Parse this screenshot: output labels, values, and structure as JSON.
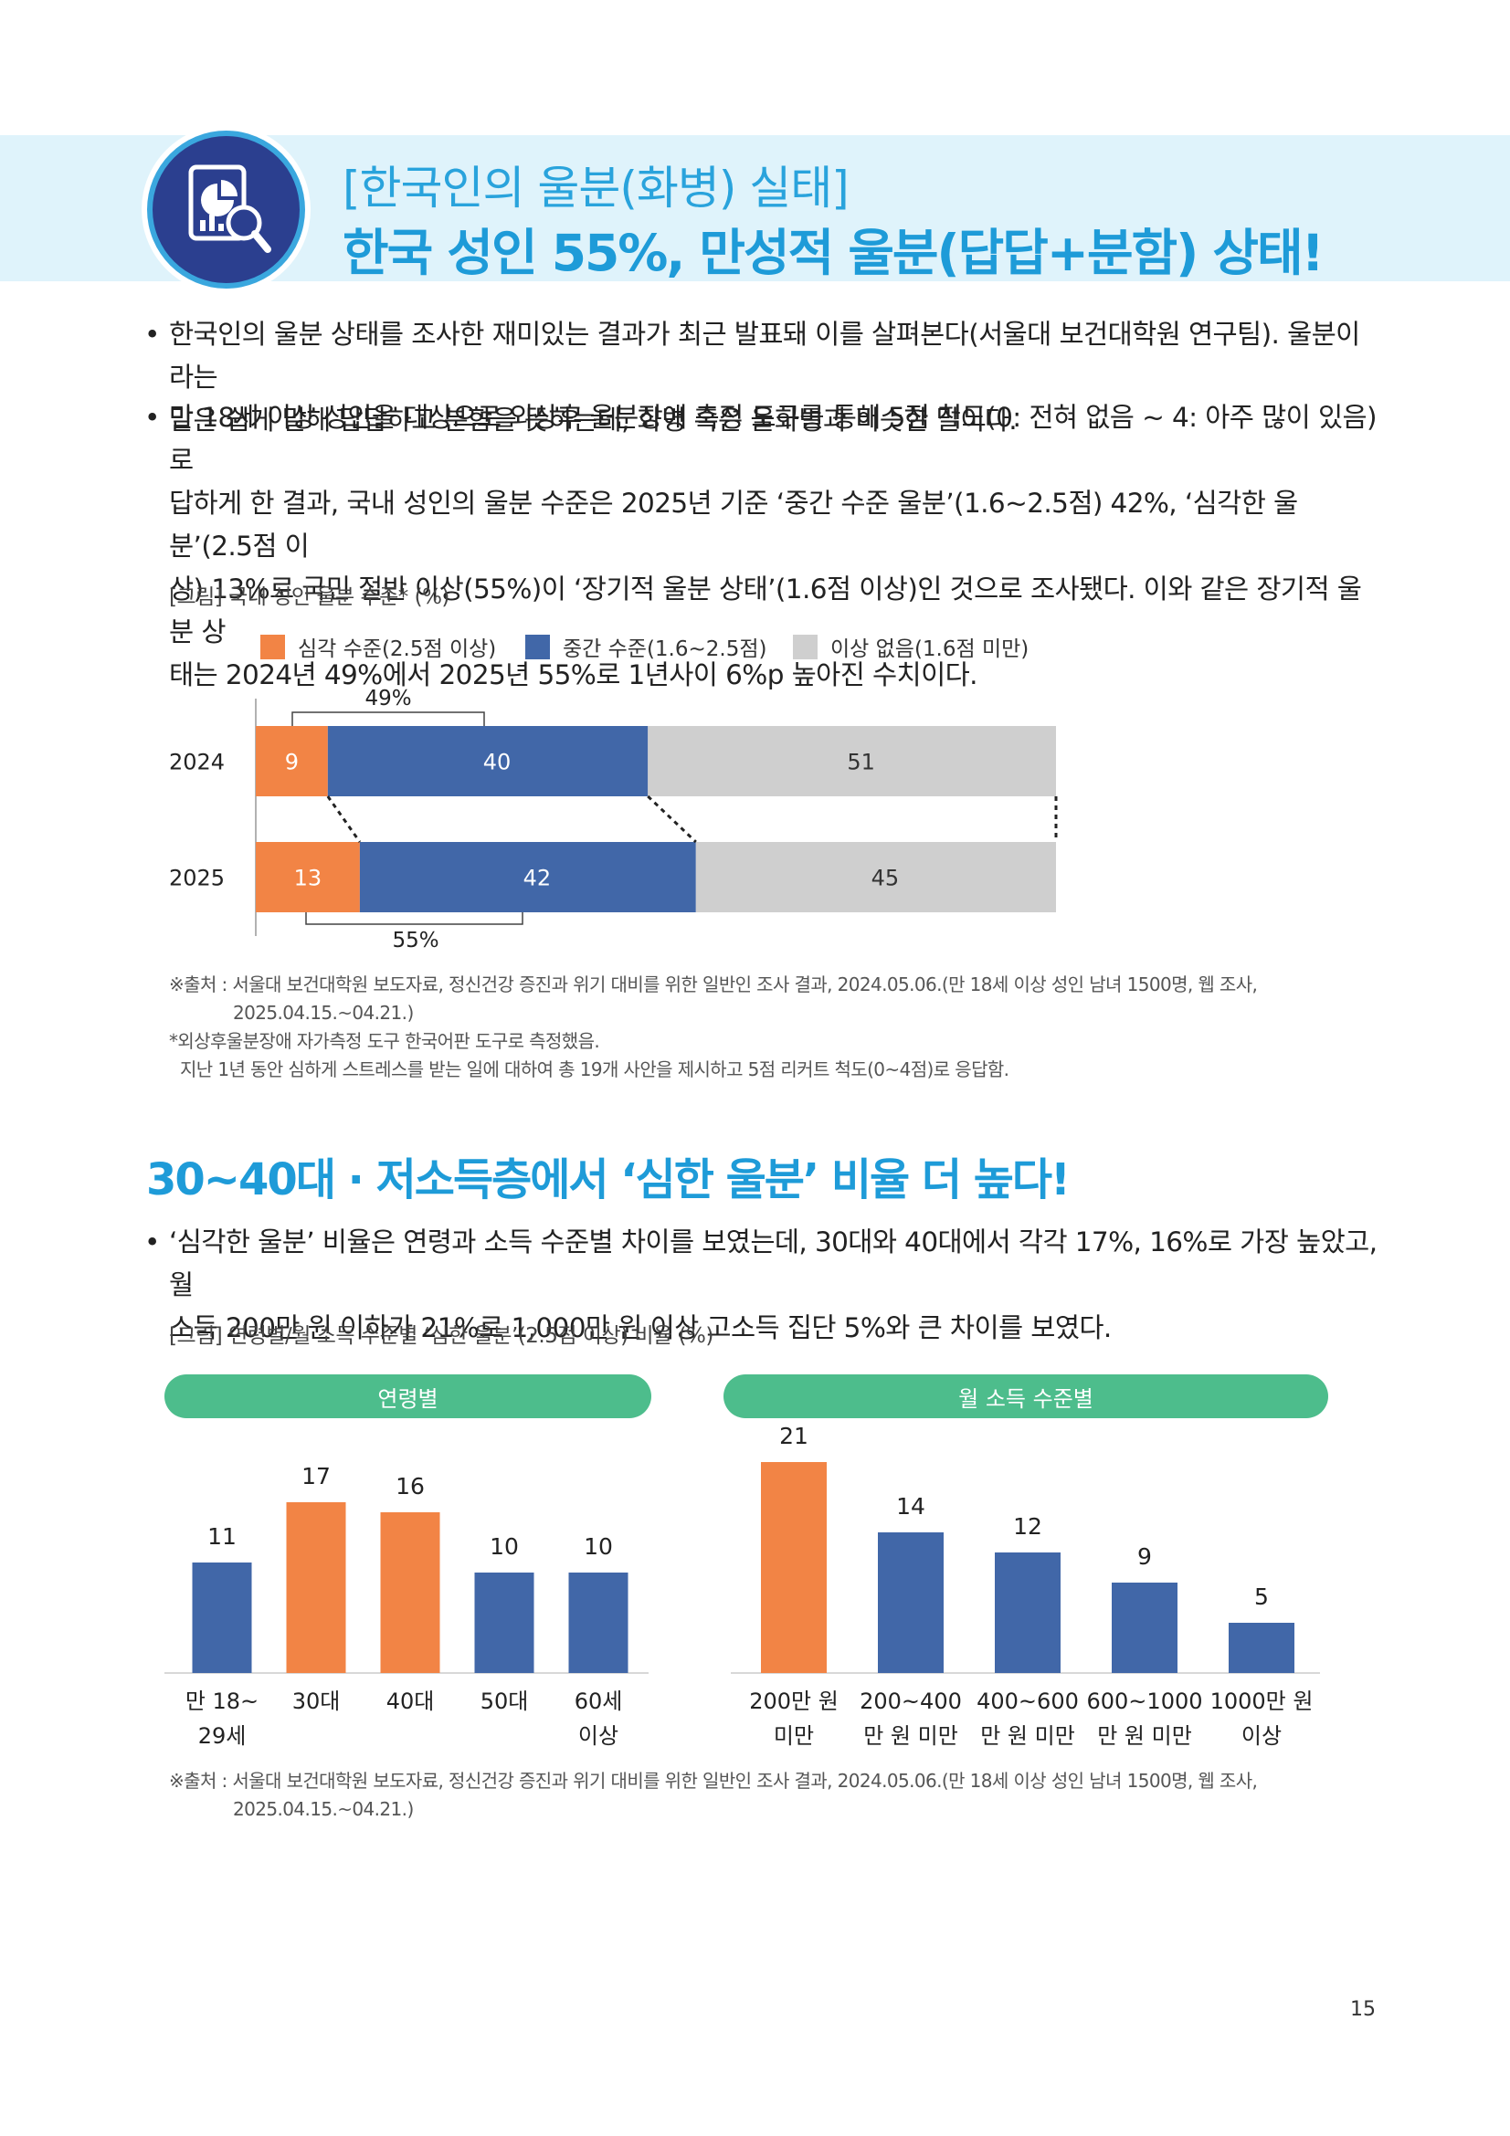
{
  "header": {
    "kicker": "[한국인의 울분(화병) 실태]",
    "title": "한국 성인 55%, 만성적 울분(답답+분함) 상태!",
    "logo_icon": "report-magnifier-icon",
    "colors": {
      "band": "#dff3fb",
      "title": "#1e9bd8",
      "logo": "#2b3f8f"
    }
  },
  "intro_bullets": [
    {
      "dot": "•",
      "lines": [
        "한국인의 울분 상태를 조사한 재미있는 결과가 최근 발표돼 이를 살펴본다(서울대 보건대학원 연구팀). 울분이라는",
        "말은 쉽게 말해 답답하고 분함을 뜻하는데, 화병 혹은 울화병과 비슷한 말이다."
      ]
    },
    {
      "dot": "•",
      "lines": [
        "만 18세 이상 성인을 대상으로 외상후 울분장애 측정 도구를 통해 5점 척도(0: 전혀 없음 ~ 4: 아주 많이 있음)로",
        "답하게 한 결과, 국내 성인의 울분 수준은 2025년 기준 ‘중간 수준 울분’(1.6~2.5점) 42%, ‘심각한 울분’(2.5점 이",
        "상) 13%로 국민 절반 이상(55%)이 ‘장기적 울분 상태’(1.6점 이상)인 것으로 조사됐다. 이와 같은 장기적 울분 상",
        "태는 2024년 49%에서 2025년 55%로 1년사이 6%p 높아진 수치이다."
      ]
    }
  ],
  "figure1": {
    "caption": "[그림] 국내 성인 울분 수준* (%)",
    "notes": [
      "※출처 : 서울대 보건대학원 보도자료, 정신건강 증진과 위기 대비를 위한 일반인 조사 결과, 2024.05.06.(만 18세 이상 성인 남녀 1500명, 웹 조사,",
      "2025.04.15.~04.21.)",
      "*외상후울분장애 자가측정 도구 한국어판 도구로 측정했음.",
      "지난 1년 동안 심하게 스트레스를 받는 일에 대하여 총 19개 사안을 제시하고 5점 리커트 척도(0~4점)로 응답함."
    ]
  },
  "chart_data": [
    {
      "type": "bar",
      "orientation": "horizontal",
      "stacked": true,
      "categories": [
        "2024",
        "2025"
      ],
      "series": [
        {
          "name": "심각 수준(2.5점 이상)",
          "color": "#f28445",
          "values": [
            9,
            13
          ]
        },
        {
          "name": "중간 수준(1.6~2.5점)",
          "color": "#4167a8",
          "values": [
            40,
            42
          ]
        },
        {
          "name": "이상 없음(1.6점 미만)",
          "color": "#cfcfcf",
          "values": [
            51,
            45
          ]
        }
      ],
      "bracket_labels": [
        "49%",
        "55%"
      ],
      "legend_placement": "top",
      "xlim": [
        0,
        100
      ],
      "grid": false
    },
    {
      "type": "bar",
      "title": "연령별",
      "categories": [
        "만 18~\n29세",
        "30대",
        "40대",
        "50대",
        "60세\n이상"
      ],
      "values": [
        11,
        17,
        16,
        10,
        10
      ],
      "colors": [
        "#4167a8",
        "#f28445",
        "#f28445",
        "#4167a8",
        "#4167a8"
      ],
      "ylim": [
        0,
        21
      ],
      "grid": false
    },
    {
      "type": "bar",
      "title": "월 소득 수준별",
      "categories": [
        "200만 원\n미만",
        "200~400\n만 원 미만",
        "400~600\n만 원 미만",
        "600~1000\n만 원 미만",
        "1000만 원\n이상"
      ],
      "values": [
        21,
        14,
        12,
        9,
        5
      ],
      "colors": [
        "#f28445",
        "#4167a8",
        "#4167a8",
        "#4167a8",
        "#4167a8"
      ],
      "ylim": [
        0,
        21
      ],
      "grid": false
    }
  ],
  "section2": {
    "title": "30~40대 · 저소득층에서 ‘심한 울분’ 비율 더 높다!",
    "bullet": {
      "dot": "•",
      "lines": [
        "‘심각한 울분’ 비율은 연령과 소득 수준별 차이를 보였는데, 30대와 40대에서 각각 17%, 16%로 가장 높았고, 월",
        "소득 200만 원 이하가 21%로 1,000만 원 이상 고소득 집단 5%와 큰 차이를 보였다."
      ]
    },
    "caption": "[그림] 연령별/월 소득 수준별 ‘심한 울분’(2.5점 이상) 비율 (%)",
    "notes": [
      "※출처 : 서울대 보건대학원 보도자료, 정신건강 증진과 위기 대비를 위한 일반인 조사 결과, 2024.05.06.(만 18세 이상 성인 남녀 1500명, 웹 조사,",
      "2025.04.15.~04.21.)"
    ]
  },
  "page_number": "15"
}
